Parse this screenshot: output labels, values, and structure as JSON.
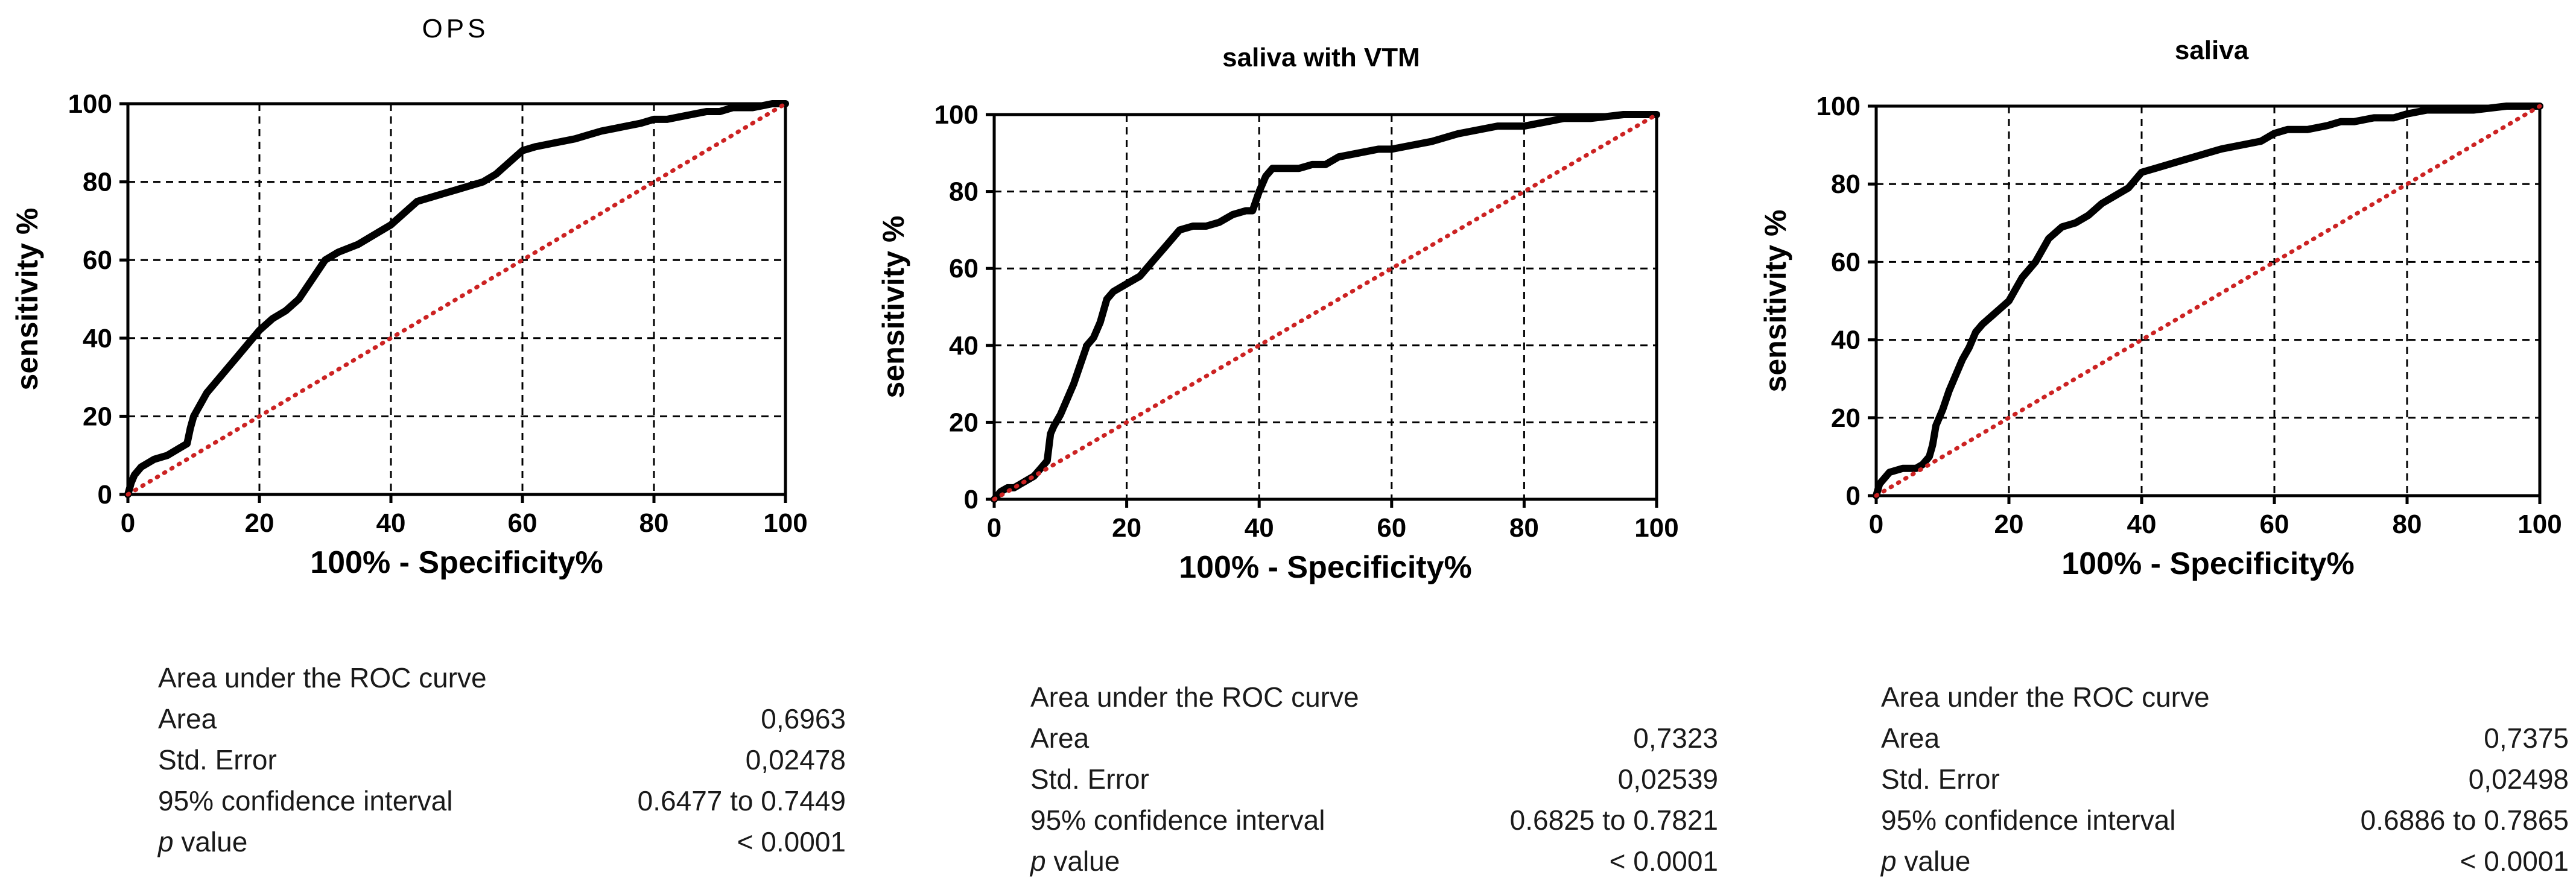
{
  "chart_data": [
    {
      "type": "line",
      "title": "OPS",
      "xlabel": "100% - Specificity%",
      "ylabel": "sensitivity %",
      "xlim": [
        0,
        100
      ],
      "ylim": [
        0,
        100
      ],
      "xticks": [
        "0",
        "20",
        "40",
        "60",
        "80",
        "100"
      ],
      "yticks": [
        "0",
        "20",
        "40",
        "60",
        "80",
        "100"
      ],
      "grid": true,
      "series": [
        {
          "name": "ROC curve",
          "x": [
            0,
            0.5,
            1,
            2,
            4,
            6,
            8,
            9,
            9.5,
            10,
            11,
            12,
            14,
            16,
            18,
            20,
            22,
            24,
            26,
            28,
            30,
            32,
            35,
            38,
            40,
            42,
            44,
            46,
            48,
            50,
            52,
            54,
            56,
            58,
            60,
            62,
            65,
            68,
            70,
            72,
            75,
            78,
            80,
            82,
            85,
            88,
            90,
            92,
            95,
            98,
            100
          ],
          "y": [
            0,
            3,
            5,
            7,
            9,
            10,
            12,
            13,
            17,
            20,
            23,
            26,
            30,
            34,
            38,
            42,
            45,
            47,
            50,
            55,
            60,
            62,
            64,
            67,
            69,
            72,
            75,
            76,
            77,
            78,
            79,
            80,
            82,
            85,
            88,
            89,
            90,
            91,
            92,
            93,
            94,
            95,
            96,
            96,
            97,
            98,
            98,
            99,
            99,
            100,
            100
          ]
        },
        {
          "name": "Reference line",
          "x": [
            0,
            100
          ],
          "y": [
            0,
            100
          ]
        }
      ]
    },
    {
      "type": "line",
      "title": "saliva with VTM",
      "xlabel": "100% - Specificity%",
      "ylabel": "sensitivity %",
      "xlim": [
        0,
        100
      ],
      "ylim": [
        0,
        100
      ],
      "xticks": [
        "0",
        "20",
        "40",
        "60",
        "80",
        "100"
      ],
      "yticks": [
        "0",
        "20",
        "40",
        "60",
        "80",
        "100"
      ],
      "grid": true,
      "series": [
        {
          "name": "ROC curve",
          "x": [
            0,
            1,
            2,
            3,
            4,
            5,
            6,
            7,
            8,
            8.5,
            9,
            10,
            11,
            12,
            13,
            14,
            15,
            16,
            17,
            18,
            19,
            20,
            22,
            24,
            26,
            28,
            30,
            32,
            34,
            36,
            38,
            39,
            40,
            41,
            42,
            44,
            46,
            48,
            50,
            52,
            55,
            58,
            60,
            63,
            66,
            70,
            73,
            76,
            80,
            83,
            86,
            90,
            95,
            100
          ],
          "y": [
            0,
            2,
            3,
            3,
            4,
            5,
            6,
            8,
            10,
            17,
            19,
            22,
            26,
            30,
            35,
            40,
            42,
            46,
            52,
            54,
            55,
            56,
            58,
            62,
            66,
            70,
            71,
            71,
            72,
            74,
            75,
            75,
            80,
            84,
            86,
            86,
            86,
            87,
            87,
            89,
            90,
            91,
            91,
            92,
            93,
            95,
            96,
            97,
            97,
            98,
            99,
            99,
            100,
            100
          ]
        },
        {
          "name": "Reference line",
          "x": [
            0,
            100
          ],
          "y": [
            0,
            100
          ]
        }
      ]
    },
    {
      "type": "line",
      "title": "saliva",
      "xlabel": "100% - Specificity%",
      "ylabel": "sensitivity %",
      "xlim": [
        0,
        100
      ],
      "ylim": [
        0,
        100
      ],
      "xticks": [
        "0",
        "20",
        "40",
        "60",
        "80",
        "100"
      ],
      "yticks": [
        "0",
        "20",
        "40",
        "60",
        "80",
        "100"
      ],
      "grid": true,
      "series": [
        {
          "name": "ROC curve",
          "x": [
            0,
            0.5,
            1,
            2,
            4,
            6,
            7,
            8,
            8.5,
            9,
            10,
            11,
            12,
            13,
            14,
            15,
            16,
            18,
            20,
            21,
            22,
            24,
            26,
            28,
            30,
            32,
            34,
            36,
            38,
            40,
            42,
            44,
            46,
            48,
            50,
            52,
            55,
            58,
            60,
            62,
            65,
            68,
            70,
            72,
            75,
            78,
            80,
            83,
            86,
            90,
            95,
            100
          ],
          "y": [
            0,
            3,
            4,
            6,
            7,
            7,
            8,
            10,
            13,
            18,
            22,
            27,
            31,
            35,
            38,
            42,
            44,
            47,
            50,
            53,
            56,
            60,
            66,
            69,
            70,
            72,
            75,
            77,
            79,
            83,
            84,
            85,
            86,
            87,
            88,
            89,
            90,
            91,
            93,
            94,
            94,
            95,
            96,
            96,
            97,
            97,
            98,
            99,
            99,
            99,
            100,
            100
          ]
        },
        {
          "name": "Reference line",
          "x": [
            0,
            100
          ],
          "y": [
            0,
            100
          ]
        }
      ]
    }
  ],
  "panels": [
    {
      "auc": {
        "heading": "Area under the ROC curve",
        "rows": [
          {
            "label": "Area",
            "value": "0,6963"
          },
          {
            "label": "Std. Error",
            "value": "0,02478"
          },
          {
            "label": "95% confidence interval",
            "value": "0.6477 to 0.7449"
          },
          {
            "label_italic": "p",
            "label": " value",
            "value": "< 0.0001"
          }
        ]
      }
    },
    {
      "auc": {
        "heading": "Area under the ROC curve",
        "rows": [
          {
            "label": "Area",
            "value": "0,7323"
          },
          {
            "label": "Std. Error",
            "value": "0,02539"
          },
          {
            "label": "95% confidence interval",
            "value": "0.6825 to 0.7821"
          },
          {
            "label_italic": "p",
            "label": " value",
            "value": "< 0.0001"
          }
        ]
      }
    },
    {
      "auc": {
        "heading": "Area under the ROC curve",
        "rows": [
          {
            "label": "Area",
            "value": "0,7375"
          },
          {
            "label": "Std. Error",
            "value": "0,02498"
          },
          {
            "label": "95% confidence interval",
            "value": "0.6886 to 0.7865"
          },
          {
            "label_italic": "p",
            "label": " value",
            "value": "< 0.0001"
          }
        ]
      }
    }
  ],
  "colors": {
    "curve": "#000000",
    "reference": "#cc2222",
    "grid": "#000000",
    "text": "#1a1a1a"
  }
}
